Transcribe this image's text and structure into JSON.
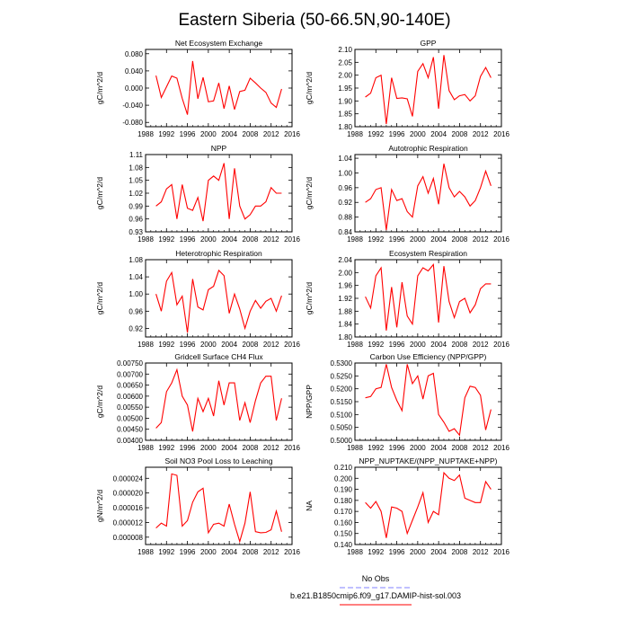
{
  "title": "Eastern Siberia (50-66.5N,90-140E)",
  "legend": {
    "entries": [
      {
        "label": "No Obs",
        "color": "#8080ff",
        "style": "dashed"
      },
      {
        "label": "b.e21.B1850cmip6.f09_g17.DAMIP-hist-sol.003",
        "color": "#ff0000",
        "style": "solid"
      }
    ]
  },
  "chart_data": [
    {
      "type": "line",
      "title": "Net Ecosystem Exchange",
      "ylabel": "gC/m^2/d",
      "xlim": [
        1988,
        2016
      ],
      "xticks": [
        1988,
        1992,
        1996,
        2000,
        2004,
        2008,
        2012,
        2016
      ],
      "ylim": [
        -0.09,
        0.09
      ],
      "yticks": [
        -0.08,
        -0.04,
        0.0,
        0.04,
        0.08
      ],
      "yticklabels": [
        "-0.080",
        "-0.040",
        "0.000",
        "0.040",
        "0.080"
      ],
      "series": [
        {
          "color": "#ff0000",
          "x": [
            1990,
            1991,
            1992,
            1993,
            1994,
            1995,
            1996,
            1997,
            1998,
            1999,
            2000,
            2001,
            2002,
            2003,
            2004,
            2005,
            2006,
            2007,
            2008,
            2009,
            2010,
            2011,
            2012,
            2013,
            2014
          ],
          "values": [
            0.029,
            -0.022,
            0.003,
            0.028,
            0.023,
            -0.024,
            -0.062,
            0.063,
            -0.025,
            0.025,
            -0.032,
            -0.03,
            0.012,
            -0.048,
            0.005,
            -0.05,
            -0.008,
            -0.005,
            0.023,
            0.012,
            0.0,
            -0.01,
            -0.035,
            -0.045,
            -0.002
          ]
        }
      ]
    },
    {
      "type": "line",
      "title": "GPP",
      "ylabel": "gC/m^2/d",
      "xlim": [
        1988,
        2016
      ],
      "xticks": [
        1988,
        1992,
        1996,
        2000,
        2004,
        2008,
        2012,
        2016
      ],
      "ylim": [
        1.8,
        2.1
      ],
      "yticks": [
        1.8,
        1.85,
        1.9,
        1.95,
        2.0,
        2.05,
        2.1
      ],
      "yticklabels": [
        "1.80",
        "1.85",
        "1.90",
        "1.95",
        "2.00",
        "2.05",
        "2.10"
      ],
      "series": [
        {
          "color": "#ff0000",
          "x": [
            1990,
            1991,
            1992,
            1993,
            1994,
            1995,
            1996,
            1997,
            1998,
            1999,
            2000,
            2001,
            2002,
            2003,
            2004,
            2005,
            2006,
            2007,
            2008,
            2009,
            2010,
            2011,
            2012,
            2013,
            2014
          ],
          "values": [
            1.915,
            1.93,
            1.99,
            2.0,
            1.81,
            1.99,
            1.91,
            1.912,
            1.908,
            1.84,
            2.015,
            2.045,
            1.99,
            2.07,
            1.87,
            2.078,
            1.94,
            1.905,
            1.92,
            1.925,
            1.9,
            1.92,
            1.995,
            2.03,
            1.99
          ]
        }
      ]
    },
    {
      "type": "line",
      "title": "NPP",
      "ylabel": "gC/m^2/d",
      "xlim": [
        1988,
        2016
      ],
      "xticks": [
        1988,
        1992,
        1996,
        2000,
        2004,
        2008,
        2012,
        2016
      ],
      "ylim": [
        0.93,
        1.11
      ],
      "yticks": [
        0.93,
        0.96,
        0.99,
        1.02,
        1.05,
        1.08,
        1.11
      ],
      "yticklabels": [
        "0.93",
        "0.96",
        "0.99",
        "1.02",
        "1.05",
        "1.08",
        "1.11"
      ],
      "series": [
        {
          "color": "#ff0000",
          "x": [
            1990,
            1991,
            1992,
            1993,
            1994,
            1995,
            1996,
            1997,
            1998,
            1999,
            2000,
            2001,
            2002,
            2003,
            2004,
            2005,
            2006,
            2007,
            2008,
            2009,
            2010,
            2011,
            2012,
            2013,
            2014
          ],
          "values": [
            0.99,
            1.0,
            1.03,
            1.04,
            0.96,
            1.04,
            0.985,
            0.98,
            1.01,
            0.955,
            1.05,
            1.06,
            1.05,
            1.09,
            0.96,
            1.078,
            0.99,
            0.96,
            0.97,
            0.99,
            0.99,
            1.0,
            1.033,
            1.02,
            1.02
          ]
        }
      ]
    },
    {
      "type": "line",
      "title": "Autotrophic Respiration",
      "ylabel": "gC/m^2/d",
      "xlim": [
        1988,
        2016
      ],
      "xticks": [
        1988,
        1992,
        1996,
        2000,
        2004,
        2008,
        2012,
        2016
      ],
      "ylim": [
        0.84,
        1.05
      ],
      "yticks": [
        0.84,
        0.88,
        0.92,
        0.96,
        1.0,
        1.04
      ],
      "yticklabels": [
        "0.84",
        "0.88",
        "0.92",
        "0.96",
        "1.00",
        "1.04"
      ],
      "series": [
        {
          "color": "#ff0000",
          "x": [
            1990,
            1991,
            1992,
            1993,
            1994,
            1995,
            1996,
            1997,
            1998,
            1999,
            2000,
            2001,
            2002,
            2003,
            2004,
            2005,
            2006,
            2007,
            2008,
            2009,
            2010,
            2011,
            2012,
            2013,
            2014
          ],
          "values": [
            0.92,
            0.93,
            0.955,
            0.96,
            0.845,
            0.955,
            0.925,
            0.93,
            0.895,
            0.88,
            0.965,
            0.99,
            0.945,
            0.985,
            0.915,
            1.025,
            0.96,
            0.935,
            0.95,
            0.935,
            0.91,
            0.925,
            0.96,
            1.005,
            0.965
          ]
        }
      ]
    },
    {
      "type": "line",
      "title": "Heterotrophic Respiration",
      "ylabel": "gC/m^2/d",
      "xlim": [
        1988,
        2016
      ],
      "xticks": [
        1988,
        1992,
        1996,
        2000,
        2004,
        2008,
        2012,
        2016
      ],
      "ylim": [
        0.9,
        1.08
      ],
      "yticks": [
        0.92,
        0.96,
        1.0,
        1.04,
        1.08
      ],
      "yticklabels": [
        "0.92",
        "0.96",
        "1.00",
        "1.04",
        "1.08"
      ],
      "series": [
        {
          "color": "#ff0000",
          "x": [
            1990,
            1991,
            1992,
            1993,
            1994,
            1995,
            1996,
            1997,
            1998,
            1999,
            2000,
            2001,
            2002,
            2003,
            2004,
            2005,
            2006,
            2007,
            2008,
            2009,
            2010,
            2011,
            2012,
            2013,
            2014
          ],
          "values": [
            1.0,
            0.96,
            1.03,
            1.05,
            0.975,
            0.995,
            0.91,
            1.035,
            0.97,
            0.963,
            1.01,
            1.018,
            1.055,
            1.043,
            0.955,
            1.0,
            0.965,
            0.92,
            0.96,
            0.985,
            0.967,
            0.983,
            0.99,
            0.96,
            0.996
          ]
        }
      ]
    },
    {
      "type": "line",
      "title": "Ecosystem Respiration",
      "ylabel": "gC/m^2/d",
      "xlim": [
        1988,
        2016
      ],
      "xticks": [
        1988,
        1992,
        1996,
        2000,
        2004,
        2008,
        2012,
        2016
      ],
      "ylim": [
        1.8,
        2.04
      ],
      "yticks": [
        1.8,
        1.84,
        1.88,
        1.92,
        1.96,
        2.0,
        2.04
      ],
      "yticklabels": [
        "1.80",
        "1.84",
        "1.88",
        "1.92",
        "1.96",
        "2.00",
        "2.04"
      ],
      "series": [
        {
          "color": "#ff0000",
          "x": [
            1990,
            1991,
            1992,
            1993,
            1994,
            1995,
            1996,
            1997,
            1998,
            1999,
            2000,
            2001,
            2002,
            2003,
            2004,
            2005,
            2006,
            2007,
            2008,
            2009,
            2010,
            2011,
            2012,
            2013,
            2014
          ],
          "values": [
            1.925,
            1.89,
            1.99,
            2.015,
            1.82,
            1.955,
            1.83,
            1.97,
            1.865,
            1.84,
            1.99,
            2.015,
            2.005,
            2.025,
            1.845,
            2.02,
            1.91,
            1.86,
            1.91,
            1.92,
            1.875,
            1.9,
            1.95,
            1.965,
            1.965
          ]
        }
      ]
    },
    {
      "type": "line",
      "title": "Gridcell Surface CH4 Flux",
      "ylabel": "gC/m^2/d",
      "xlim": [
        1988,
        2016
      ],
      "xticks": [
        1988,
        1992,
        1996,
        2000,
        2004,
        2008,
        2012,
        2016
      ],
      "ylim": [
        0.004,
        0.0075
      ],
      "yticks": [
        0.004,
        0.0045,
        0.005,
        0.0055,
        0.006,
        0.0065,
        0.007,
        0.0075
      ],
      "yticklabels": [
        "0.00400",
        "0.00450",
        "0.00500",
        "0.00550",
        "0.00600",
        "0.00650",
        "0.00700",
        "0.00750"
      ],
      "series": [
        {
          "color": "#ff0000",
          "x": [
            1990,
            1991,
            1992,
            1993,
            1994,
            1995,
            1996,
            1997,
            1998,
            1999,
            2000,
            2001,
            2002,
            2003,
            2004,
            2005,
            2006,
            2007,
            2008,
            2009,
            2010,
            2011,
            2012,
            2013,
            2014
          ],
          "values": [
            0.00455,
            0.0048,
            0.0062,
            0.0066,
            0.0072,
            0.006,
            0.0056,
            0.0044,
            0.0059,
            0.0053,
            0.0059,
            0.0051,
            0.0067,
            0.0056,
            0.0066,
            0.0066,
            0.0049,
            0.0057,
            0.0048,
            0.0058,
            0.0066,
            0.0069,
            0.0069,
            0.0049,
            0.0059
          ]
        }
      ]
    },
    {
      "type": "line",
      "title": "Carbon Use Efficiency (NPP/GPP)",
      "ylabel": "NPP/GPP",
      "xlim": [
        1988,
        2016
      ],
      "xticks": [
        1988,
        1992,
        1996,
        2000,
        2004,
        2008,
        2012,
        2016
      ],
      "ylim": [
        0.5,
        0.53
      ],
      "yticks": [
        0.5,
        0.505,
        0.51,
        0.515,
        0.52,
        0.525,
        0.53
      ],
      "yticklabels": [
        "0.5000",
        "0.5050",
        "0.5100",
        "0.5150",
        "0.5200",
        "0.5250",
        "0.5300"
      ],
      "series": [
        {
          "color": "#ff0000",
          "x": [
            1990,
            1991,
            1992,
            1993,
            1994,
            1995,
            1996,
            1997,
            1998,
            1999,
            2000,
            2001,
            2002,
            2003,
            2004,
            2005,
            2006,
            2007,
            2008,
            2009,
            2010,
            2011,
            2012,
            2013,
            2014
          ],
          "values": [
            0.5165,
            0.517,
            0.52,
            0.5205,
            0.5295,
            0.5205,
            0.5155,
            0.5115,
            0.5295,
            0.522,
            0.525,
            0.516,
            0.525,
            0.526,
            0.51,
            0.507,
            0.5035,
            0.5045,
            0.502,
            0.5165,
            0.521,
            0.5205,
            0.5175,
            0.504,
            0.512
          ]
        }
      ]
    },
    {
      "type": "line",
      "title": "Soil NO3 Pool Loss to Leaching",
      "ylabel": "gN/m^2/d",
      "xlim": [
        1988,
        2016
      ],
      "xticks": [
        1988,
        1992,
        1996,
        2000,
        2004,
        2008,
        2012,
        2016
      ],
      "ylim": [
        6e-06,
        2.7e-05
      ],
      "yticks": [
        8e-06,
        1.2e-05,
        1.6e-05,
        2e-05,
        2.4e-05
      ],
      "yticklabels": [
        "0.000008",
        "0.000012",
        "0.000016",
        "0.000020",
        "0.000024"
      ],
      "series": [
        {
          "color": "#ff0000",
          "x": [
            1990,
            1991,
            1992,
            1993,
            1994,
            1995,
            1996,
            1997,
            1998,
            1999,
            2000,
            2001,
            2002,
            2003,
            2004,
            2005,
            2006,
            2007,
            2008,
            2009,
            2010,
            2011,
            2012,
            2013,
            2014
          ],
          "values": [
            1.05e-05,
            1.18e-05,
            1.1e-05,
            2.52e-05,
            2.48e-05,
            1.1e-05,
            1.25e-05,
            1.75e-05,
            2.03e-05,
            2.13e-05,
            9.2e-06,
            1.15e-05,
            1.18e-05,
            1.1e-05,
            1.7e-05,
            1.15e-05,
            6.8e-06,
            1.18e-05,
            2.03e-05,
            9.5e-06,
            9.2e-06,
            9.3e-06,
            1e-05,
            1.51e-05,
            9.5e-06
          ]
        }
      ]
    },
    {
      "type": "line",
      "title": "NPP_NUPTAKE/(NPP_NUPTAKE+NPP)",
      "ylabel": "NA",
      "xlim": [
        1988,
        2016
      ],
      "xticks": [
        1988,
        1992,
        1996,
        2000,
        2004,
        2008,
        2012,
        2016
      ],
      "ylim": [
        0.14,
        0.21
      ],
      "yticks": [
        0.14,
        0.15,
        0.16,
        0.17,
        0.18,
        0.19,
        0.2,
        0.21
      ],
      "yticklabels": [
        "0.140",
        "0.150",
        "0.160",
        "0.170",
        "0.180",
        "0.190",
        "0.200",
        "0.210"
      ],
      "series": [
        {
          "color": "#ff0000",
          "x": [
            1990,
            1991,
            1992,
            1993,
            1994,
            1995,
            1996,
            1997,
            1998,
            1999,
            2000,
            2001,
            2002,
            2003,
            2004,
            2005,
            2006,
            2007,
            2008,
            2009,
            2010,
            2011,
            2012,
            2013,
            2014
          ],
          "values": [
            0.178,
            0.173,
            0.179,
            0.17,
            0.146,
            0.174,
            0.173,
            0.17,
            0.15,
            0.162,
            0.174,
            0.187,
            0.16,
            0.17,
            0.167,
            0.205,
            0.2,
            0.198,
            0.203,
            0.182,
            0.18,
            0.178,
            0.178,
            0.197,
            0.19
          ]
        }
      ]
    }
  ]
}
